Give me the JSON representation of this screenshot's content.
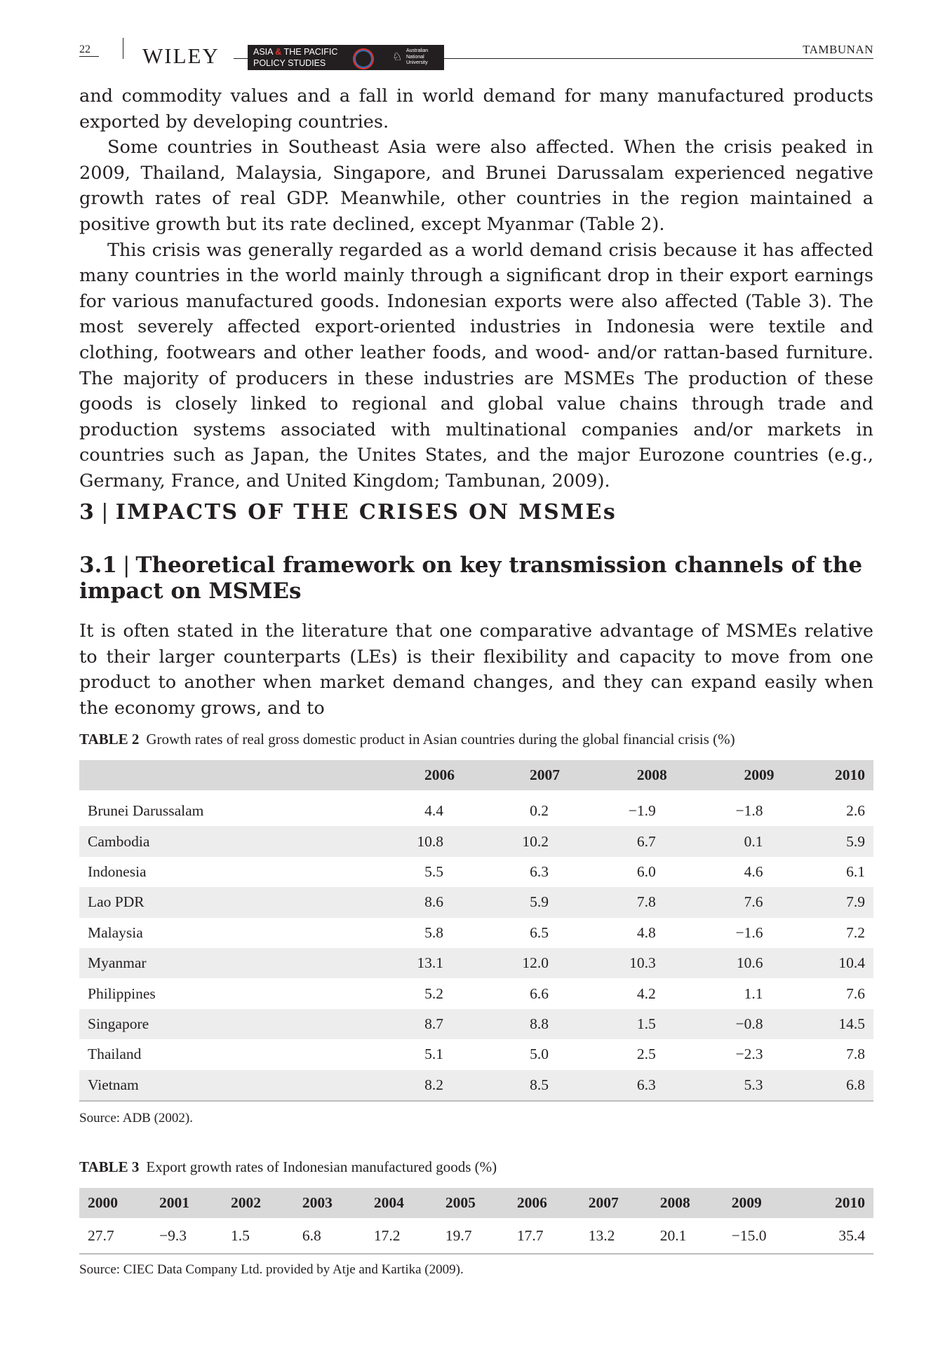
{
  "header": {
    "page_number": "22",
    "publisher": "WILEY",
    "journal_line1_a": "ASIA ",
    "journal_amp": "&",
    "journal_line1_b": " THE PACIFIC",
    "journal_line2": "POLICY STUDIES",
    "university": "Australian\nNational\nUniversity",
    "running_head": "TAMBUNAN"
  },
  "paragraphs": [
    "and commodity values and a fall in world demand for many manufactured products exported by developing countries.",
    "Some countries in Southeast Asia were also affected. When the crisis peaked in 2009, Thailand, Malaysia, Singapore, and Brunei Darussalam experienced negative growth rates of real GDP. Meanwhile, other countries in the region maintained a positive growth but its rate declined, except Myanmar (Table 2).",
    "This crisis was generally regarded as a world demand crisis because it has affected many countries in the world mainly through a significant drop in their export earnings for various manufactured goods. Indonesian exports were also affected (Table 3). The most severely affected export-oriented industries in Indonesia were textile and clothing, footwears and other leather foods, and wood- and/or rattan-based furniture. The majority of producers in these industries are MSMEs The production of these goods is closely linked to regional and global value chains through trade and production systems associated with multinational companies and/or markets in countries such as Japan, the Unites States, and the major Eurozone countries (e.g., Germany, France, and United Kingdom; Tambunan, 2009)."
  ],
  "section": {
    "number": "3",
    "separator": "|",
    "title": "IMPACTS OF THE CRISES ON MSMEs"
  },
  "subsection": {
    "number": "3.1",
    "separator": "|",
    "title": "Theoretical framework on key transmission channels of the impact on MSMEs"
  },
  "subsection_paragraph": "It is often stated in the literature that one comparative advantage of MSMEs relative to their larger counterparts (LEs) is their flexibility and capacity to move from one product to another when market demand changes, and they can expand easily when the economy grows, and to",
  "table2": {
    "label": "TABLE 2",
    "caption": "Growth rates of real gross domestic product in Asian countries during the global financial crisis (%)",
    "columns": [
      "",
      "2006",
      "2007",
      "2008",
      "2009",
      "2010"
    ],
    "rows": [
      [
        "Brunei Darussalam",
        "4.4",
        "0.2",
        "−1.9",
        "−1.8",
        "2.6"
      ],
      [
        "Cambodia",
        "10.8",
        "10.2",
        "6.7",
        "0.1",
        "5.9"
      ],
      [
        "Indonesia",
        "5.5",
        "6.3",
        "6.0",
        "4.6",
        "6.1"
      ],
      [
        "Lao PDR",
        "8.6",
        "5.9",
        "7.8",
        "7.6",
        "7.9"
      ],
      [
        "Malaysia",
        "5.8",
        "6.5",
        "4.8",
        "−1.6",
        "7.2"
      ],
      [
        "Myanmar",
        "13.1",
        "12.0",
        "10.3",
        "10.6",
        "10.4"
      ],
      [
        "Philippines",
        "5.2",
        "6.6",
        "4.2",
        "1.1",
        "7.6"
      ],
      [
        "Singapore",
        "8.7",
        "8.8",
        "1.5",
        "−0.8",
        "14.5"
      ],
      [
        "Thailand",
        "5.1",
        "5.0",
        "2.5",
        "−2.3",
        "7.8"
      ],
      [
        "Vietnam",
        "8.2",
        "8.5",
        "6.3",
        "5.3",
        "6.8"
      ]
    ],
    "source": "Source: ADB (2002)."
  },
  "table3": {
    "label": "TABLE 3",
    "caption": "Export growth rates of Indonesian manufactured goods (%)",
    "columns": [
      "2000",
      "2001",
      "2002",
      "2003",
      "2004",
      "2005",
      "2006",
      "2007",
      "2008",
      "2009",
      "2010"
    ],
    "rows": [
      [
        "27.7",
        "−9.3",
        "1.5",
        "6.8",
        "17.2",
        "19.7",
        "17.7",
        "13.2",
        "20.1",
        "−15.0",
        "35.4"
      ]
    ],
    "source": "Source: CIEC Data Company Ltd. provided by Atje and Kartika (2009)."
  }
}
